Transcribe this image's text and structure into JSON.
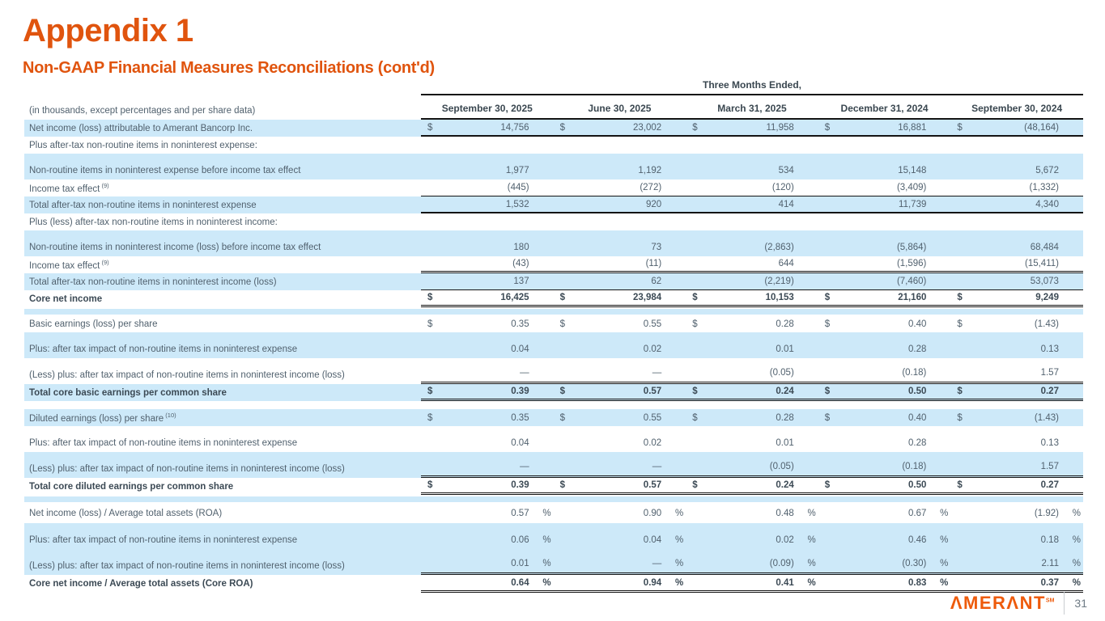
{
  "page": {
    "title": "Appendix 1",
    "subtitle": "Non-GAAP Financial Measures Reconciliations (cont'd)",
    "page_number": "31",
    "logo_text": "ΛMERΛNT",
    "logo_sup": "SM"
  },
  "table": {
    "group_header": "Three Months Ended,",
    "note": "(in thousands, except percentages and per share data)",
    "currency": "$",
    "percent": "%",
    "columns": [
      "September 30, 2025",
      "June 30, 2025",
      "March 31, 2025",
      "December 31, 2024",
      "September 30, 2024"
    ],
    "rows": [
      {
        "label": "Net income (loss) attributable to Amerant Bancorp Inc.",
        "hl": true,
        "d": true,
        "v": [
          "14,756",
          "23,002",
          "11,958",
          "16,881",
          "(48,164)"
        ],
        "bb": "2"
      },
      {
        "label": "Plus after-tax non-routine items in noninterest expense:"
      },
      {
        "label": "Non-routine items in noninterest expense before income tax effect",
        "hl": true,
        "tall": true,
        "v": [
          "1,977",
          "1,192",
          "534",
          "15,148",
          "5,672"
        ]
      },
      {
        "label": "Income tax effect",
        "sup": "(9)",
        "v": [
          "(445)",
          "(272)",
          "(120)",
          "(3,409)",
          "(1,332)"
        ],
        "bb": "1"
      },
      {
        "label": "Total after-tax non-routine items in noninterest expense",
        "hl": true,
        "v": [
          "1,532",
          "920",
          "414",
          "11,739",
          "4,340"
        ],
        "bb": "2"
      },
      {
        "label": "Plus (less) after-tax non-routine items in noninterest income:"
      },
      {
        "label": "Non-routine items in noninterest income (loss) before income tax effect",
        "hl": true,
        "tall": true,
        "v": [
          "180",
          "73",
          "(2,863)",
          "(5,864)",
          "68,484"
        ]
      },
      {
        "label": "Income tax effect",
        "sup": "(9)",
        "v": [
          "(43)",
          "(11)",
          "644",
          "(1,596)",
          "(15,411)"
        ],
        "bb": "d"
      },
      {
        "label": "Total after-tax non-routine items in noninterest income (loss)",
        "hl": true,
        "v": [
          "137",
          "62",
          "(2,219)",
          "(7,460)",
          "53,073"
        ],
        "bb": "1"
      },
      {
        "label": "Core net income",
        "bold": true,
        "d": true,
        "v": [
          "16,425",
          "23,984",
          "10,153",
          "21,160",
          "9,249"
        ],
        "bb": "d"
      },
      {
        "type": "spacer",
        "hl": true
      },
      {
        "label": "Basic earnings (loss) per share",
        "d": true,
        "v": [
          "0.35",
          "0.55",
          "0.28",
          "0.40",
          "(1.43)"
        ]
      },
      {
        "label": "Plus: after tax impact of non-routine items in noninterest expense",
        "hl": true,
        "tall": true,
        "v": [
          "0.04",
          "0.02",
          "0.01",
          "0.28",
          "0.13"
        ]
      },
      {
        "label": "(Less) plus: after tax impact of non-routine items in noninterest income (loss)",
        "tall": true,
        "v": [
          "—",
          "—",
          "(0.05)",
          "(0.18)",
          "1.57"
        ],
        "bb": "d"
      },
      {
        "label": "Total core basic earnings per common share",
        "bold": true,
        "hl": true,
        "d": true,
        "v": [
          "0.39",
          "0.57",
          "0.24",
          "0.50",
          "0.27"
        ],
        "bb": "d"
      },
      {
        "type": "spacer"
      },
      {
        "label": "Diluted earnings (loss) per share",
        "sup": "(10)",
        "hl": true,
        "d": true,
        "v": [
          "0.35",
          "0.55",
          "0.28",
          "0.40",
          "(1.43)"
        ]
      },
      {
        "label": "Plus: after tax impact of non-routine items in noninterest expense",
        "tall": true,
        "v": [
          "0.04",
          "0.02",
          "0.01",
          "0.28",
          "0.13"
        ]
      },
      {
        "label": "(Less) plus: after tax impact of non-routine items in noninterest income (loss)",
        "hl": true,
        "tall": true,
        "v": [
          "—",
          "—",
          "(0.05)",
          "(0.18)",
          "1.57"
        ],
        "bb": "d"
      },
      {
        "label": "Total core diluted earnings per common share",
        "bold": true,
        "d": true,
        "v": [
          "0.39",
          "0.57",
          "0.24",
          "0.50",
          "0.27"
        ],
        "bb": "d"
      },
      {
        "type": "spacer",
        "hl": true
      },
      {
        "label": "Net income (loss) / Average total assets (ROA)",
        "pct": true,
        "h": 25,
        "v": [
          "0.57",
          "0.90",
          "0.48",
          "0.67",
          "(1.92)"
        ]
      },
      {
        "label": "Plus: after tax impact of non-routine items in noninterest expense",
        "hl": true,
        "tall": true,
        "pct": true,
        "v": [
          "0.06",
          "0.04",
          "0.02",
          "0.46",
          "0.18"
        ]
      },
      {
        "label": "(Less) plus: after tax impact of non-routine items in noninterest income (loss)",
        "hl": true,
        "tall": true,
        "pct": true,
        "v": [
          "0.01",
          "—",
          "(0.09)",
          "(0.30)",
          "2.11"
        ],
        "bb": "d"
      },
      {
        "label": "Core net income / Average total assets (Core ROA)",
        "bold": true,
        "pct": true,
        "h": 22,
        "v": [
          "0.64",
          "0.94",
          "0.41",
          "0.83",
          "0.37"
        ],
        "bb": "d"
      }
    ]
  }
}
